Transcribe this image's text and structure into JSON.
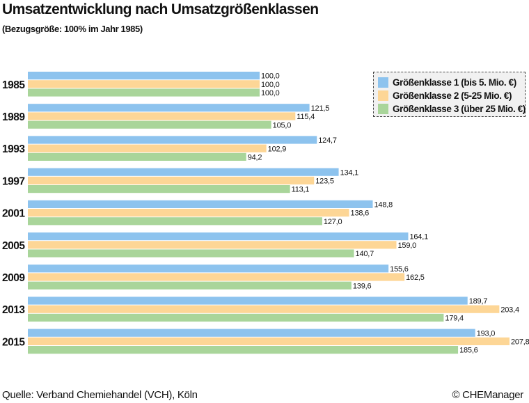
{
  "chart_data": {
    "type": "bar",
    "orientation": "horizontal",
    "title": "Umsatzentwicklung nach Umsatzgrößenklassen",
    "subtitle": "(Bezugsgröße: 100% im Jahr 1985)",
    "categories": [
      "1985",
      "1989",
      "1993",
      "1997",
      "2001",
      "2005",
      "2009",
      "2013",
      "2015"
    ],
    "series": [
      {
        "name": "Größenklasse 1 (bis 5. Mio. €)",
        "color": "#8dc3ee",
        "values": [
          100.0,
          121.5,
          124.7,
          134.1,
          148.8,
          164.1,
          155.6,
          189.7,
          193.0
        ],
        "labels": [
          "100,0",
          "121,5",
          "124,7",
          "134,1",
          "148,8",
          "164,1",
          "155,6",
          "189,7",
          "193,0"
        ]
      },
      {
        "name": "Größenklasse 2 (5-25 Mio. €)",
        "color": "#fdd696",
        "values": [
          100.0,
          115.4,
          102.9,
          123.5,
          138.6,
          159.0,
          162.5,
          203.4,
          207.8
        ],
        "labels": [
          "100,0",
          "115,4",
          "102,9",
          "123,5",
          "138,6",
          "159,0",
          "162,5",
          "203,4",
          "207,8"
        ]
      },
      {
        "name": "Größenklasse 3 (über 25 Mio. €)",
        "color": "#a9d59a",
        "values": [
          100.0,
          105.0,
          94.2,
          113.1,
          127.0,
          140.7,
          139.6,
          179.4,
          185.6
        ],
        "labels": [
          "100,0",
          "105,0",
          "94,2",
          "113,1",
          "127,0",
          "140,7",
          "139,6",
          "179,4",
          "185,6"
        ]
      }
    ],
    "xlim": [
      0,
      207.8
    ],
    "grid": false,
    "legend_position": "top-right"
  },
  "footer": {
    "source": "Quelle: Verband Chemiehandel (VCH), Köln",
    "copyright": "© CHEManager"
  }
}
